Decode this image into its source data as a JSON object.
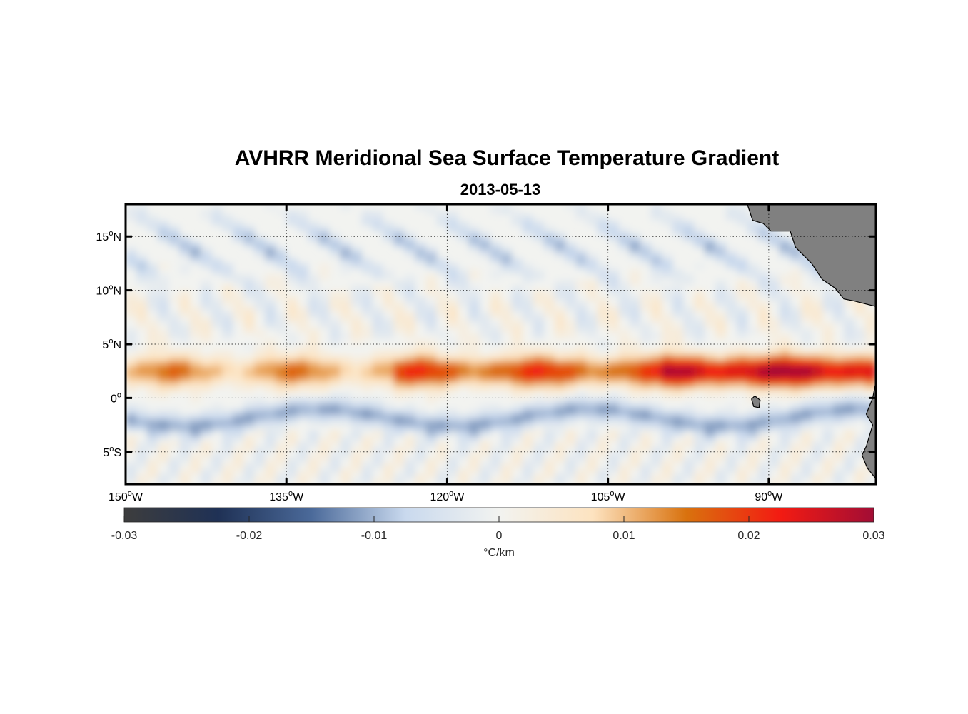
{
  "chart_data": {
    "type": "heatmap",
    "title": "AVHRR Meridional Sea Surface Temperature Gradient",
    "subtitle": "2013-05-13",
    "lon_range": [
      -150,
      -80
    ],
    "lat_range": [
      -8,
      18
    ],
    "lon_ticks": [
      {
        "value": -150,
        "label": "150",
        "sup": "o",
        "suffix": "W"
      },
      {
        "value": -135,
        "label": "135",
        "sup": "o",
        "suffix": "W"
      },
      {
        "value": -120,
        "label": "120",
        "sup": "o",
        "suffix": "W"
      },
      {
        "value": -105,
        "label": "105",
        "sup": "o",
        "suffix": "W"
      },
      {
        "value": -90,
        "label": "90",
        "sup": "o",
        "suffix": "W"
      }
    ],
    "lat_ticks": [
      {
        "value": 15,
        "label": "15",
        "sup": "o",
        "suffix": "N"
      },
      {
        "value": 10,
        "label": "10",
        "sup": "o",
        "suffix": "N"
      },
      {
        "value": 5,
        "label": "5",
        "sup": "o",
        "suffix": "N"
      },
      {
        "value": 0,
        "label": "0",
        "sup": "o",
        "suffix": ""
      },
      {
        "value": -5,
        "label": "5",
        "sup": "o",
        "suffix": "S"
      }
    ],
    "grid": true,
    "colorbar": {
      "min": -0.03,
      "max": 0.03,
      "ticks": [
        -0.03,
        -0.02,
        -0.01,
        0,
        0.01,
        0.02,
        0.03
      ],
      "tick_labels": [
        "-0.03",
        "-0.02",
        "-0.01",
        "0",
        "0.01",
        "0.02",
        "0.03"
      ],
      "label": "°C/km",
      "orientation": "horizontal",
      "colormap": [
        "#3d3d3d",
        "#1f3155",
        "#4b6a9a",
        "#c9d9ee",
        "#f2f3f0",
        "#fde3c0",
        "#d9720e",
        "#f31b12",
        "#a20d35"
      ]
    },
    "features": [
      {
        "name": "equatorial front (positive band)",
        "lat_center": 2.5,
        "lon_extent": [
          -150,
          -80
        ],
        "sign": "positive",
        "peak_value": 0.03
      },
      {
        "name": "south equatorial front (negative band)",
        "lat_center": -1.5,
        "lon_extent": [
          -150,
          -90
        ],
        "sign": "negative",
        "peak_value": -0.02
      },
      {
        "name": "northern eddy field (negative)",
        "lat_extent": [
          12,
          18
        ],
        "lon_extent": [
          -145,
          -100
        ],
        "sign": "negative"
      }
    ],
    "land_color": "#808080"
  }
}
